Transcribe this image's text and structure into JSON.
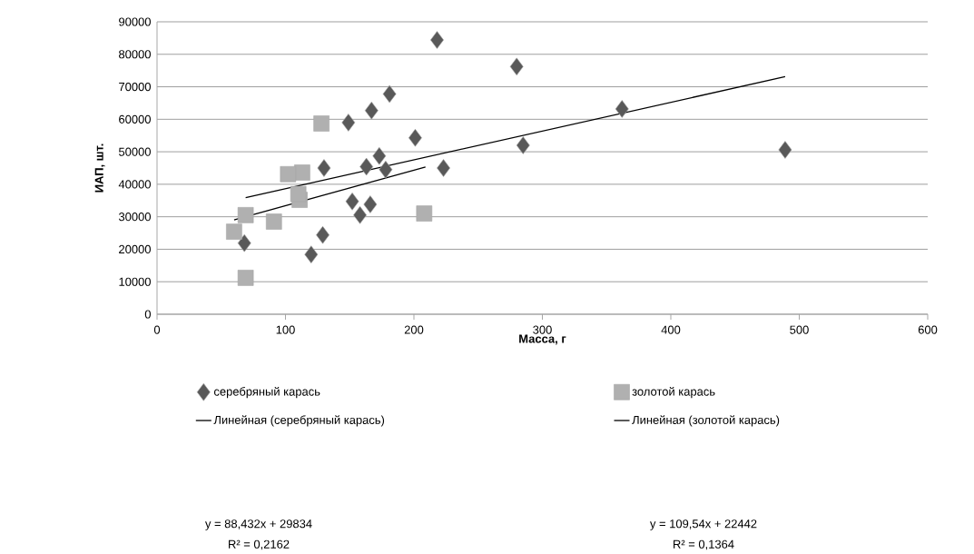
{
  "chart_data": {
    "type": "scatter",
    "xlabel": "Масса, г",
    "ylabel": "ИАП, шт.",
    "series": [
      {
        "name": "серебряный карась",
        "color": "#595959",
        "marker": "diamond",
        "x": [
          218,
          181,
          167,
          149,
          201,
          130,
          173,
          163,
          178,
          223,
          152,
          166,
          158,
          129,
          120,
          68,
          280,
          285,
          362,
          489
        ],
        "values": [
          84400,
          67800,
          62700,
          59000,
          54300,
          45000,
          48700,
          45400,
          44500,
          45000,
          34700,
          33800,
          30500,
          24400,
          18400,
          21900,
          76200,
          52000,
          63200,
          50600
        ]
      },
      {
        "name": "золотой карась",
        "color": "#b0b0b0",
        "marker": "square",
        "x": [
          128,
          102,
          113,
          110,
          111,
          69,
          60,
          91,
          69,
          208
        ],
        "values": [
          58700,
          43100,
          43600,
          37000,
          35200,
          30500,
          25400,
          28500,
          11200,
          31000
        ]
      },
      {
        "name": "Линейная (серебряный карась)",
        "type": "line",
        "color": "#000000",
        "marker": "none",
        "x": [
          69,
          489
        ],
        "values": [
          35900,
          73100
        ]
      },
      {
        "name": "Линейная (золотой карась)",
        "type": "line",
        "color": "#000000",
        "marker": "none",
        "x": [
          60,
          209
        ],
        "values": [
          29000,
          45300
        ]
      }
    ],
    "xlim": [
      0,
      600
    ],
    "xticks": [
      0,
      100,
      200,
      300,
      400,
      500,
      600
    ],
    "ylim": [
      0,
      90000
    ],
    "yticks": [
      0,
      10000,
      20000,
      30000,
      40000,
      50000,
      60000,
      70000,
      80000,
      90000
    ],
    "grid": "y",
    "legend": "bottom",
    "annotations": [
      "y = 88,432x + 29834",
      "R² = 0,2162",
      "y = 109,54x + 22442",
      "R² = 0,1364"
    ]
  }
}
